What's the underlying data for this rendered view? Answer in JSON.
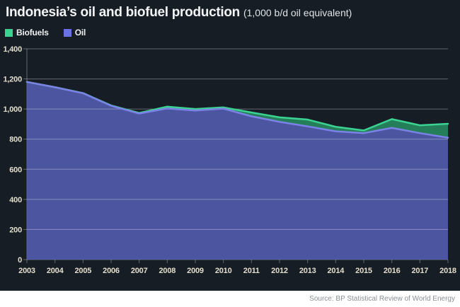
{
  "header": {
    "title": "Indonesia’s oil and biofuel production",
    "subtitle": "(1,000 b/d oil equivalent)"
  },
  "legend": {
    "items": [
      {
        "label": "Biofuels",
        "color": "#3bd392"
      },
      {
        "label": "Oil",
        "color": "#6a71e0"
      }
    ]
  },
  "footer": {
    "source": "Source: BP Statistical Review of World Energy"
  },
  "colors": {
    "background": "#161d25",
    "oil_line": "#7b82e6",
    "oil_fill": "rgba(84,94,178,0.88)",
    "biofuels_line": "#3bd392",
    "biofuels_fill": "rgba(47,186,122,0.62)",
    "grid": "rgba(255,255,255,0.33)",
    "tick_label": "#e3decb",
    "footer_bg": "#ffffff",
    "footer_text": "#8a8f94"
  },
  "chart_data": {
    "type": "area",
    "stacked": true,
    "title": "Indonesia’s oil and biofuel production",
    "subtitle": "(1,000 b/d oil equivalent)",
    "unit": "1,000 b/d oil equivalent",
    "x": [
      2003,
      2004,
      2005,
      2006,
      2007,
      2008,
      2009,
      2010,
      2011,
      2012,
      2013,
      2014,
      2015,
      2016,
      2017,
      2018
    ],
    "series": [
      {
        "name": "Oil",
        "values": [
          1180,
          1145,
          1105,
          1022,
          970,
          1004,
          990,
          1003,
          952,
          915,
          885,
          852,
          840,
          875,
          840,
          810
        ]
      },
      {
        "name": "Biofuels",
        "values": [
          0,
          0,
          1,
          2,
          4,
          12,
          10,
          8,
          25,
          30,
          45,
          30,
          18,
          58,
          52,
          92
        ]
      }
    ],
    "totals": [
      1180,
      1145,
      1106,
      1024,
      974,
      1016,
      1000,
      1011,
      977,
      945,
      930,
      882,
      858,
      933,
      892,
      902
    ],
    "ylim": [
      0,
      1400
    ],
    "ytick_step": 200,
    "grid": true,
    "legend_position": "top-left"
  }
}
